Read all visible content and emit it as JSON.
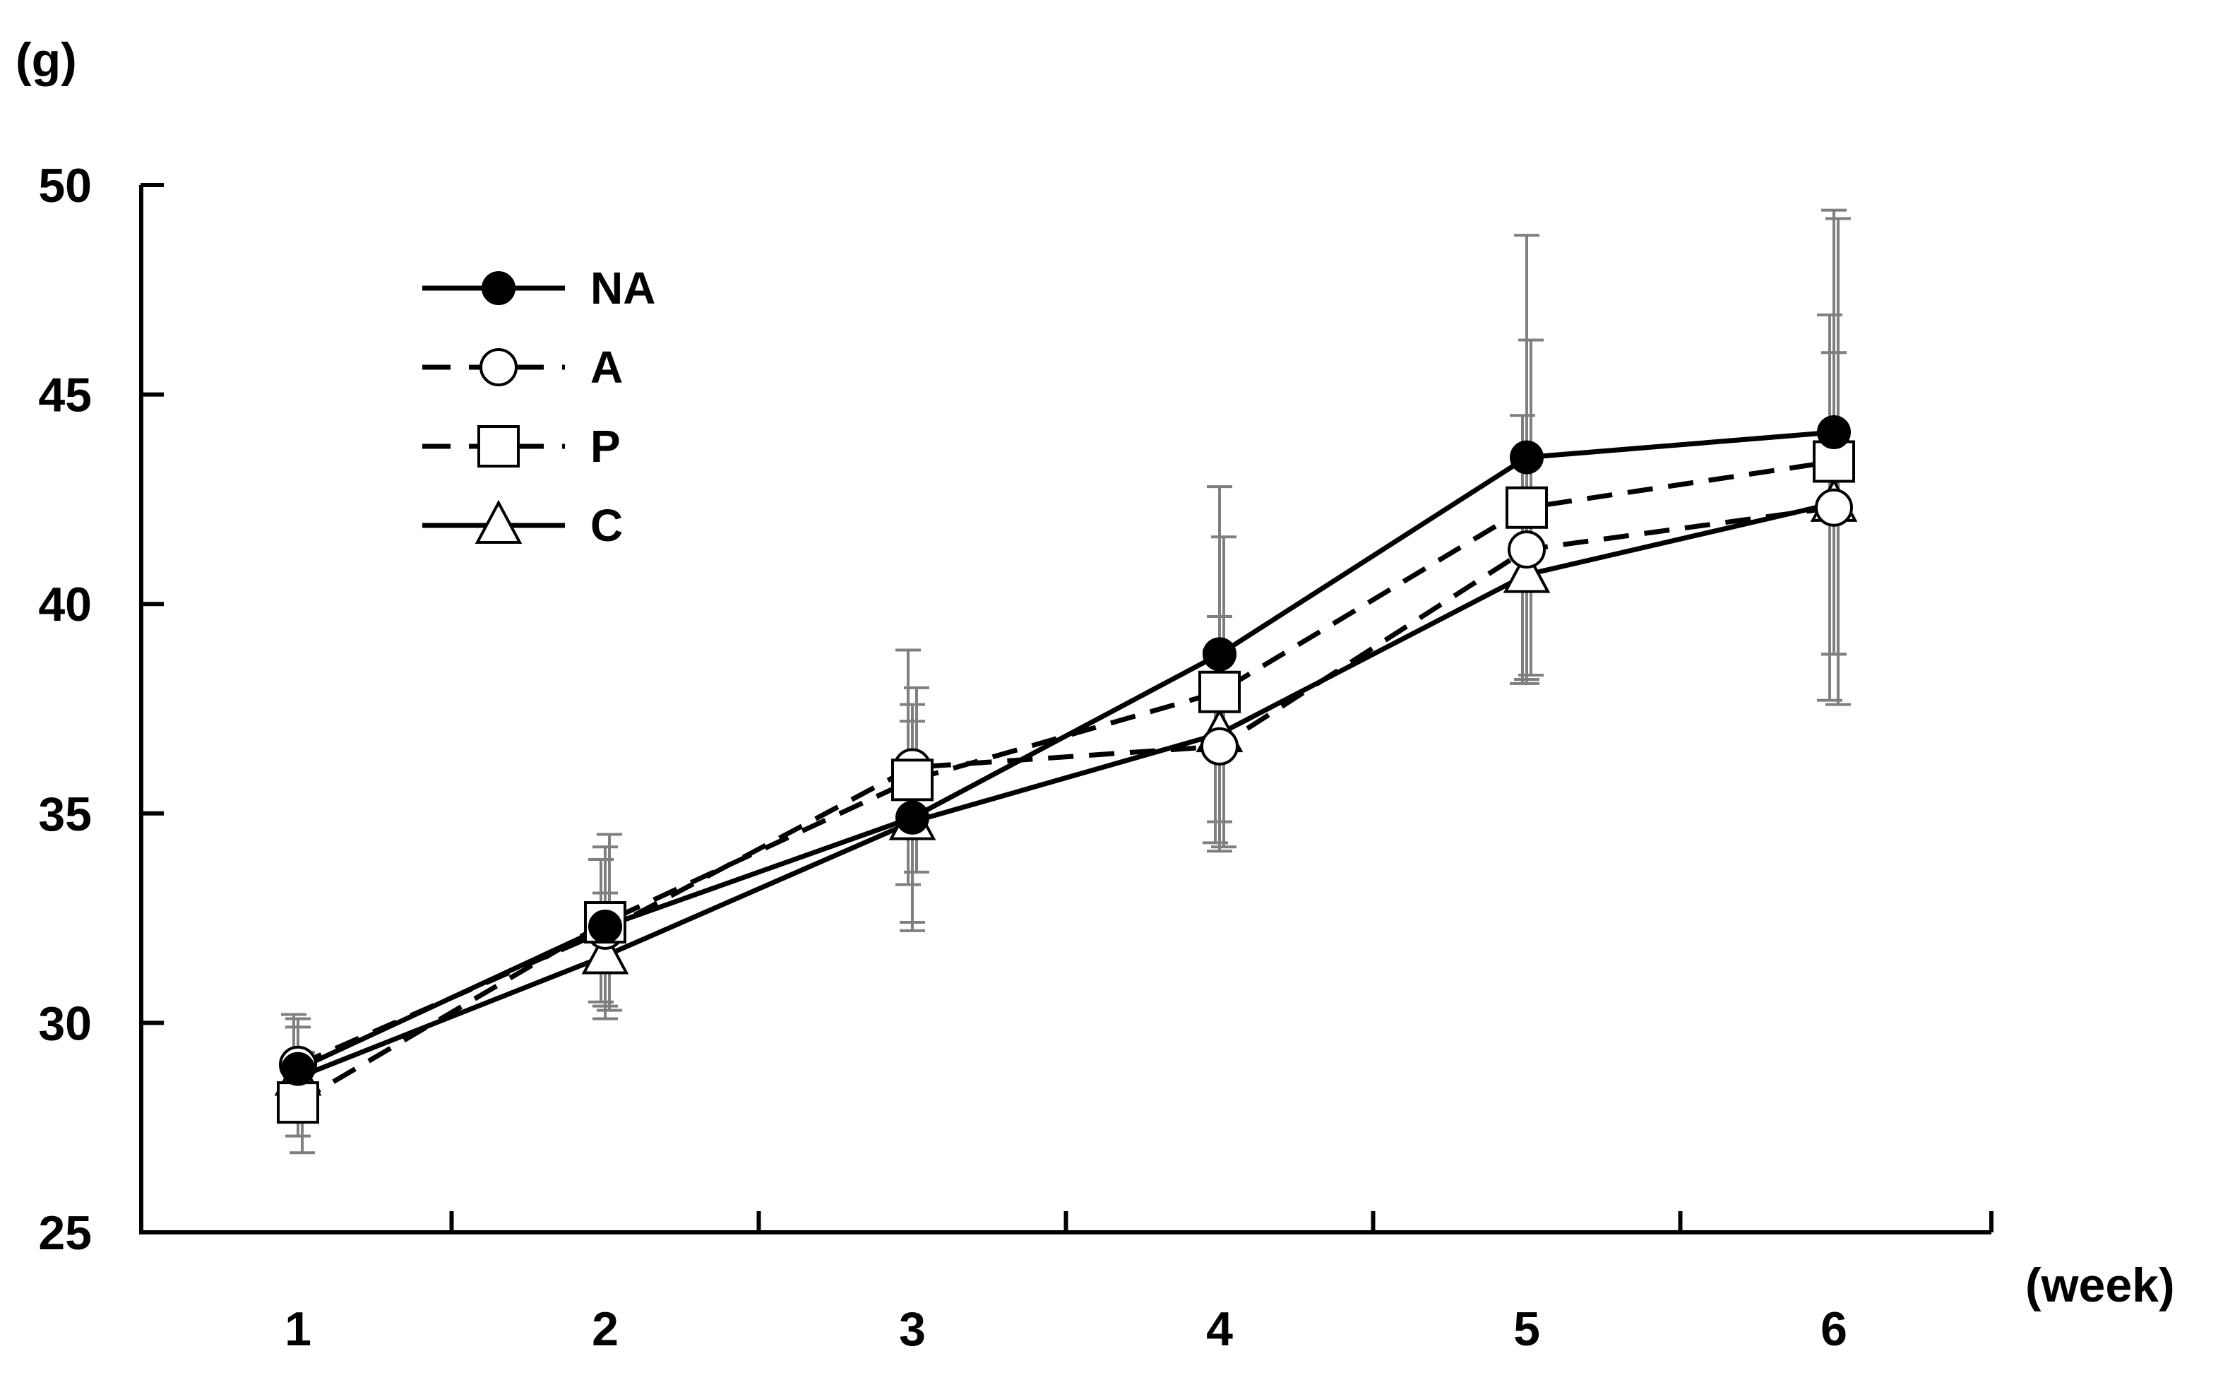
{
  "chart_data": {
    "type": "line",
    "title": "",
    "ylabel": "(g)",
    "xlabel": "(week)",
    "ylim": [
      25,
      50
    ],
    "yticks": [
      25,
      30,
      35,
      40,
      45,
      50
    ],
    "x": [
      1,
      2,
      3,
      4,
      5,
      6
    ],
    "xtick_labels": [
      "1",
      "2",
      "3",
      "4",
      "5",
      "6"
    ],
    "grid": false,
    "legend_position": "top-left",
    "series": [
      {
        "name": "NA",
        "marker": "filled-circle",
        "line_style": "solid",
        "values": [
          28.9,
          32.3,
          34.9,
          38.8,
          43.5,
          44.1
        ],
        "error": [
          1.0,
          1.9,
          2.7,
          4.0,
          5.3,
          5.3
        ]
      },
      {
        "name": "A",
        "marker": "open-circle",
        "line_style": "dashed",
        "values": [
          29.0,
          32.2,
          36.1,
          36.6,
          41.3,
          42.3
        ],
        "error": [
          1.2,
          1.7,
          2.8,
          2.3,
          3.2,
          4.6
        ]
      },
      {
        "name": "P",
        "marker": "open-square",
        "line_style": "dashed",
        "values": [
          28.1,
          32.4,
          35.8,
          37.9,
          42.3,
          43.4
        ],
        "error": [
          1.2,
          2.1,
          2.2,
          3.7,
          4.0,
          5.8
        ]
      },
      {
        "name": "C",
        "marker": "open-triangle",
        "line_style": "solid",
        "values": [
          28.7,
          31.6,
          34.8,
          36.9,
          40.7,
          42.4
        ],
        "error": [
          1.4,
          1.5,
          2.4,
          2.8,
          2.6,
          3.6
        ]
      }
    ]
  }
}
